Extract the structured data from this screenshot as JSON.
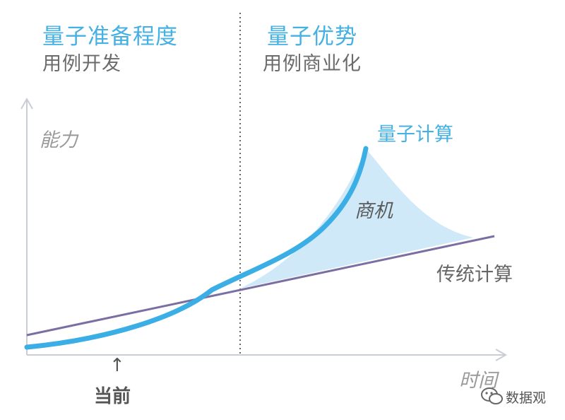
{
  "phases": {
    "left": {
      "title": "量子准备程度",
      "subtitle": "用例开发"
    },
    "right": {
      "title": "量子优势",
      "subtitle": "用例商业化"
    }
  },
  "axes": {
    "y_label": "能力",
    "x_label": "时间"
  },
  "curves": {
    "quantum": {
      "label": "量子计算",
      "color": "#3aaee5"
    },
    "classical": {
      "label": "传统计算",
      "color": "#7b6ea3"
    }
  },
  "opportunity": {
    "label": "商机",
    "color": "#cfe9f8"
  },
  "marker": {
    "label": "当前",
    "arrow": "↑"
  },
  "watermark": {
    "text": "数据观"
  },
  "colors": {
    "axis": "#c9cdd6",
    "divider": "#666666"
  }
}
